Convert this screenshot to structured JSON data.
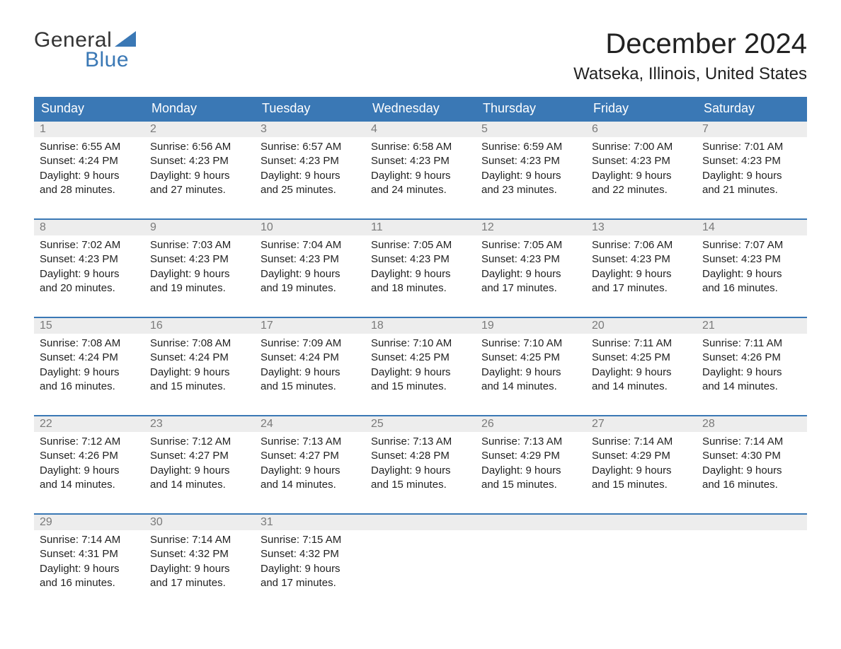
{
  "logo": {
    "word1": "General",
    "word2": "Blue"
  },
  "brand_color": "#3a78b5",
  "header_bg": "#3a78b5",
  "header_fg": "#ffffff",
  "number_row_bg": "#ededed",
  "number_color": "#7a7a7a",
  "text_color": "#222222",
  "page_bg": "#ffffff",
  "title": "December 2024",
  "location": "Watseka, Illinois, United States",
  "weekdays": [
    "Sunday",
    "Monday",
    "Tuesday",
    "Wednesday",
    "Thursday",
    "Friday",
    "Saturday"
  ],
  "weeks": [
    [
      {
        "num": "1",
        "sunrise": "Sunrise: 6:55 AM",
        "sunset": "Sunset: 4:24 PM",
        "d1": "Daylight: 9 hours",
        "d2": "and 28 minutes."
      },
      {
        "num": "2",
        "sunrise": "Sunrise: 6:56 AM",
        "sunset": "Sunset: 4:23 PM",
        "d1": "Daylight: 9 hours",
        "d2": "and 27 minutes."
      },
      {
        "num": "3",
        "sunrise": "Sunrise: 6:57 AM",
        "sunset": "Sunset: 4:23 PM",
        "d1": "Daylight: 9 hours",
        "d2": "and 25 minutes."
      },
      {
        "num": "4",
        "sunrise": "Sunrise: 6:58 AM",
        "sunset": "Sunset: 4:23 PM",
        "d1": "Daylight: 9 hours",
        "d2": "and 24 minutes."
      },
      {
        "num": "5",
        "sunrise": "Sunrise: 6:59 AM",
        "sunset": "Sunset: 4:23 PM",
        "d1": "Daylight: 9 hours",
        "d2": "and 23 minutes."
      },
      {
        "num": "6",
        "sunrise": "Sunrise: 7:00 AM",
        "sunset": "Sunset: 4:23 PM",
        "d1": "Daylight: 9 hours",
        "d2": "and 22 minutes."
      },
      {
        "num": "7",
        "sunrise": "Sunrise: 7:01 AM",
        "sunset": "Sunset: 4:23 PM",
        "d1": "Daylight: 9 hours",
        "d2": "and 21 minutes."
      }
    ],
    [
      {
        "num": "8",
        "sunrise": "Sunrise: 7:02 AM",
        "sunset": "Sunset: 4:23 PM",
        "d1": "Daylight: 9 hours",
        "d2": "and 20 minutes."
      },
      {
        "num": "9",
        "sunrise": "Sunrise: 7:03 AM",
        "sunset": "Sunset: 4:23 PM",
        "d1": "Daylight: 9 hours",
        "d2": "and 19 minutes."
      },
      {
        "num": "10",
        "sunrise": "Sunrise: 7:04 AM",
        "sunset": "Sunset: 4:23 PM",
        "d1": "Daylight: 9 hours",
        "d2": "and 19 minutes."
      },
      {
        "num": "11",
        "sunrise": "Sunrise: 7:05 AM",
        "sunset": "Sunset: 4:23 PM",
        "d1": "Daylight: 9 hours",
        "d2": "and 18 minutes."
      },
      {
        "num": "12",
        "sunrise": "Sunrise: 7:05 AM",
        "sunset": "Sunset: 4:23 PM",
        "d1": "Daylight: 9 hours",
        "d2": "and 17 minutes."
      },
      {
        "num": "13",
        "sunrise": "Sunrise: 7:06 AM",
        "sunset": "Sunset: 4:23 PM",
        "d1": "Daylight: 9 hours",
        "d2": "and 17 minutes."
      },
      {
        "num": "14",
        "sunrise": "Sunrise: 7:07 AM",
        "sunset": "Sunset: 4:23 PM",
        "d1": "Daylight: 9 hours",
        "d2": "and 16 minutes."
      }
    ],
    [
      {
        "num": "15",
        "sunrise": "Sunrise: 7:08 AM",
        "sunset": "Sunset: 4:24 PM",
        "d1": "Daylight: 9 hours",
        "d2": "and 16 minutes."
      },
      {
        "num": "16",
        "sunrise": "Sunrise: 7:08 AM",
        "sunset": "Sunset: 4:24 PM",
        "d1": "Daylight: 9 hours",
        "d2": "and 15 minutes."
      },
      {
        "num": "17",
        "sunrise": "Sunrise: 7:09 AM",
        "sunset": "Sunset: 4:24 PM",
        "d1": "Daylight: 9 hours",
        "d2": "and 15 minutes."
      },
      {
        "num": "18",
        "sunrise": "Sunrise: 7:10 AM",
        "sunset": "Sunset: 4:25 PM",
        "d1": "Daylight: 9 hours",
        "d2": "and 15 minutes."
      },
      {
        "num": "19",
        "sunrise": "Sunrise: 7:10 AM",
        "sunset": "Sunset: 4:25 PM",
        "d1": "Daylight: 9 hours",
        "d2": "and 14 minutes."
      },
      {
        "num": "20",
        "sunrise": "Sunrise: 7:11 AM",
        "sunset": "Sunset: 4:25 PM",
        "d1": "Daylight: 9 hours",
        "d2": "and 14 minutes."
      },
      {
        "num": "21",
        "sunrise": "Sunrise: 7:11 AM",
        "sunset": "Sunset: 4:26 PM",
        "d1": "Daylight: 9 hours",
        "d2": "and 14 minutes."
      }
    ],
    [
      {
        "num": "22",
        "sunrise": "Sunrise: 7:12 AM",
        "sunset": "Sunset: 4:26 PM",
        "d1": "Daylight: 9 hours",
        "d2": "and 14 minutes."
      },
      {
        "num": "23",
        "sunrise": "Sunrise: 7:12 AM",
        "sunset": "Sunset: 4:27 PM",
        "d1": "Daylight: 9 hours",
        "d2": "and 14 minutes."
      },
      {
        "num": "24",
        "sunrise": "Sunrise: 7:13 AM",
        "sunset": "Sunset: 4:27 PM",
        "d1": "Daylight: 9 hours",
        "d2": "and 14 minutes."
      },
      {
        "num": "25",
        "sunrise": "Sunrise: 7:13 AM",
        "sunset": "Sunset: 4:28 PM",
        "d1": "Daylight: 9 hours",
        "d2": "and 15 minutes."
      },
      {
        "num": "26",
        "sunrise": "Sunrise: 7:13 AM",
        "sunset": "Sunset: 4:29 PM",
        "d1": "Daylight: 9 hours",
        "d2": "and 15 minutes."
      },
      {
        "num": "27",
        "sunrise": "Sunrise: 7:14 AM",
        "sunset": "Sunset: 4:29 PM",
        "d1": "Daylight: 9 hours",
        "d2": "and 15 minutes."
      },
      {
        "num": "28",
        "sunrise": "Sunrise: 7:14 AM",
        "sunset": "Sunset: 4:30 PM",
        "d1": "Daylight: 9 hours",
        "d2": "and 16 minutes."
      }
    ],
    [
      {
        "num": "29",
        "sunrise": "Sunrise: 7:14 AM",
        "sunset": "Sunset: 4:31 PM",
        "d1": "Daylight: 9 hours",
        "d2": "and 16 minutes."
      },
      {
        "num": "30",
        "sunrise": "Sunrise: 7:14 AM",
        "sunset": "Sunset: 4:32 PM",
        "d1": "Daylight: 9 hours",
        "d2": "and 17 minutes."
      },
      {
        "num": "31",
        "sunrise": "Sunrise: 7:15 AM",
        "sunset": "Sunset: 4:32 PM",
        "d1": "Daylight: 9 hours",
        "d2": "and 17 minutes."
      },
      {
        "empty": true
      },
      {
        "empty": true
      },
      {
        "empty": true
      },
      {
        "empty": true
      }
    ]
  ]
}
